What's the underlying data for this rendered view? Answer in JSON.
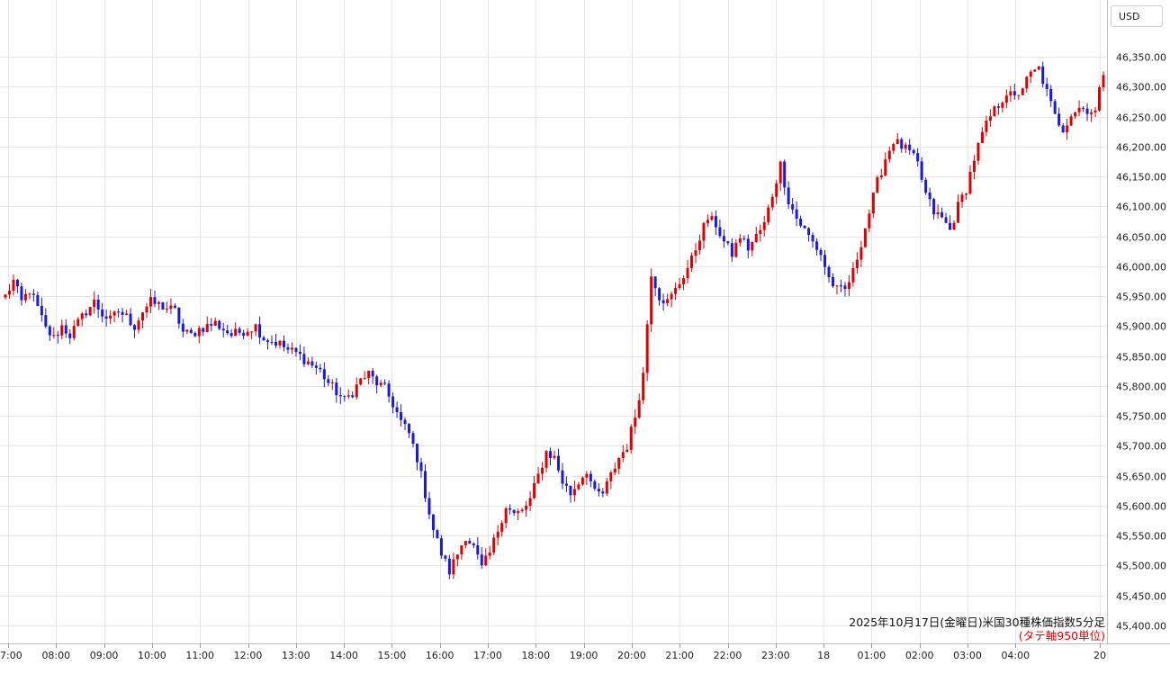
{
  "currency_label": "USD",
  "caption": {
    "title": "2025年10月17日(金曜日)米国30種株価指数5分足",
    "note": "(タテ軸950単位)"
  },
  "colors": {
    "up": "#e00000",
    "down": "#1a1adf",
    "grid": "#e6e6e6",
    "text": "#222222",
    "note": "#e00000"
  },
  "chart_data": {
    "type": "candlestick",
    "title": "2025年10月17日(金曜日)米国30種株価指数5分足",
    "x_tick_labels": [
      "7:00",
      "08:00",
      "09:00",
      "10:00",
      "11:00",
      "12:00",
      "13:00",
      "14:00",
      "15:00",
      "16:00",
      "17:00",
      "18:00",
      "19:00",
      "20:00",
      "21:00",
      "22:00",
      "23:00",
      "18",
      "01:00",
      "02:00",
      "03:00",
      "04:00",
      "20"
    ],
    "y_tick_labels": [
      "45,400.00",
      "45,450.00",
      "45,500.00",
      "45,550.00",
      "45,600.00",
      "45,650.00",
      "45,700.00",
      "45,750.00",
      "45,800.00",
      "45,850.00",
      "45,900.00",
      "45,950.00",
      "46,000.00",
      "46,050.00",
      "46,100.00",
      "46,150.00",
      "46,200.00",
      "46,250.00",
      "46,300.00",
      "46,350.00"
    ],
    "ylim": [
      45375,
      46400
    ],
    "grid": true,
    "close_path": [
      [
        0,
        45950
      ],
      [
        2,
        45975
      ],
      [
        4,
        45940
      ],
      [
        6,
        45960
      ],
      [
        8,
        45930
      ],
      [
        10,
        45895
      ],
      [
        12,
        45880
      ],
      [
        14,
        45900
      ],
      [
        16,
        45885
      ],
      [
        18,
        45905
      ],
      [
        20,
        45925
      ],
      [
        22,
        45940
      ],
      [
        24,
        45920
      ],
      [
        26,
        45910
      ],
      [
        28,
        45925
      ],
      [
        30,
        45915
      ],
      [
        32,
        45900
      ],
      [
        34,
        45925
      ],
      [
        36,
        45940
      ],
      [
        38,
        45935
      ],
      [
        40,
        45930
      ],
      [
        42,
        45925
      ],
      [
        44,
        45890
      ],
      [
        46,
        45885
      ],
      [
        48,
        45895
      ],
      [
        50,
        45900
      ],
      [
        52,
        45905
      ],
      [
        54,
        45895
      ],
      [
        56,
        45885
      ],
      [
        58,
        45890
      ],
      [
        60,
        45895
      ],
      [
        62,
        45900
      ],
      [
        64,
        45880
      ],
      [
        66,
        45875
      ],
      [
        68,
        45870
      ],
      [
        70,
        45860
      ],
      [
        72,
        45855
      ],
      [
        74,
        45845
      ],
      [
        76,
        45835
      ],
      [
        78,
        45825
      ],
      [
        80,
        45805
      ],
      [
        82,
        45790
      ],
      [
        84,
        45775
      ],
      [
        86,
        45790
      ],
      [
        88,
        45810
      ],
      [
        90,
        45820
      ],
      [
        92,
        45805
      ],
      [
        94,
        45795
      ],
      [
        96,
        45770
      ],
      [
        98,
        45740
      ],
      [
        100,
        45720
      ],
      [
        102,
        45680
      ],
      [
        104,
        45620
      ],
      [
        106,
        45560
      ],
      [
        108,
        45520
      ],
      [
        110,
        45490
      ],
      [
        112,
        45520
      ],
      [
        114,
        45550
      ],
      [
        116,
        45530
      ],
      [
        118,
        45495
      ],
      [
        120,
        45520
      ],
      [
        122,
        45560
      ],
      [
        124,
        45600
      ],
      [
        126,
        45585
      ],
      [
        128,
        45590
      ],
      [
        130,
        45610
      ],
      [
        132,
        45650
      ],
      [
        134,
        45690
      ],
      [
        136,
        45680
      ],
      [
        138,
        45640
      ],
      [
        140,
        45620
      ],
      [
        142,
        45640
      ],
      [
        144,
        45660
      ],
      [
        146,
        45620
      ],
      [
        148,
        45620
      ],
      [
        150,
        45650
      ],
      [
        152,
        45680
      ],
      [
        154,
        45700
      ],
      [
        156,
        45750
      ],
      [
        158,
        45820
      ],
      [
        160,
        45990
      ],
      [
        162,
        45950
      ],
      [
        164,
        45940
      ],
      [
        166,
        45960
      ],
      [
        168,
        45985
      ],
      [
        170,
        46010
      ],
      [
        172,
        46050
      ],
      [
        174,
        46080
      ],
      [
        176,
        46070
      ],
      [
        178,
        46040
      ],
      [
        180,
        46020
      ],
      [
        182,
        46050
      ],
      [
        184,
        46030
      ],
      [
        186,
        46050
      ],
      [
        188,
        46070
      ],
      [
        190,
        46120
      ],
      [
        192,
        46170
      ],
      [
        194,
        46110
      ],
      [
        196,
        46080
      ],
      [
        198,
        46060
      ],
      [
        200,
        46040
      ],
      [
        202,
        46020
      ],
      [
        204,
        45980
      ],
      [
        206,
        45960
      ],
      [
        208,
        45960
      ],
      [
        210,
        45990
      ],
      [
        212,
        46040
      ],
      [
        214,
        46090
      ],
      [
        216,
        46140
      ],
      [
        218,
        46180
      ],
      [
        220,
        46210
      ],
      [
        222,
        46200
      ],
      [
        224,
        46190
      ],
      [
        226,
        46170
      ],
      [
        228,
        46120
      ],
      [
        230,
        46090
      ],
      [
        232,
        46080
      ],
      [
        234,
        46060
      ],
      [
        236,
        46100
      ],
      [
        238,
        46130
      ],
      [
        240,
        46180
      ],
      [
        242,
        46220
      ],
      [
        244,
        46250
      ],
      [
        246,
        46270
      ],
      [
        248,
        46290
      ],
      [
        250,
        46280
      ],
      [
        252,
        46300
      ],
      [
        254,
        46320
      ],
      [
        256,
        46330
      ],
      [
        258,
        46290
      ],
      [
        260,
        46250
      ],
      [
        262,
        46230
      ],
      [
        264,
        46255
      ],
      [
        266,
        46265
      ],
      [
        268,
        46262
      ],
      [
        270,
        46258
      ],
      [
        272,
        46325
      ]
    ],
    "series": [
      {
        "name": "",
        "color_up": "#e00000",
        "color_down": "#1a1adf"
      }
    ]
  }
}
